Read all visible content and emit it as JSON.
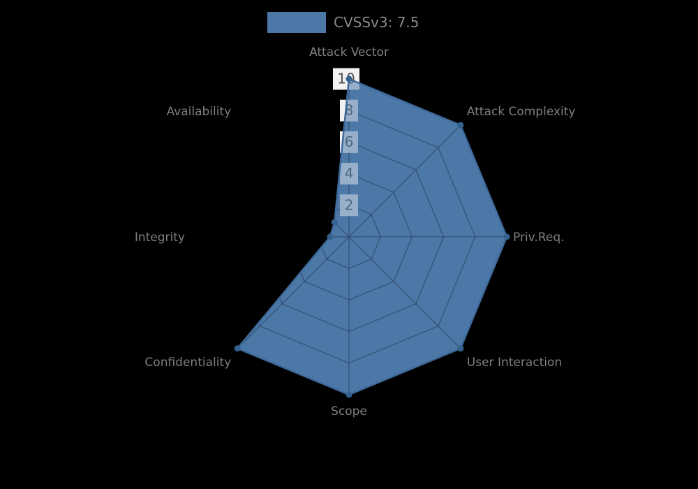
{
  "legend": {
    "label": "CVSSv3: 7.5",
    "swatch_color": "#4c78a8"
  },
  "chart_data": {
    "type": "radar",
    "categories": [
      "Attack Vector",
      "Attack Complexity",
      "Priv.Req.",
      "User Interaction",
      "Scope",
      "Confidentiality",
      "Integrity",
      "Availability"
    ],
    "series": [
      {
        "name": "CVSSv3: 7.5",
        "values": [
          10,
          10,
          10,
          10,
          10,
          10,
          1.2,
          1.3
        ]
      }
    ],
    "radial_ticks": [
      2,
      4,
      6,
      8,
      10
    ],
    "rmax": 10,
    "start_axis": "top",
    "direction": "clockwise",
    "grid": "on",
    "legend_position": "top-center",
    "colors": {
      "series_fill": "#4c78a8",
      "series_line": "#3e699b",
      "series_marker": "#35618f",
      "grid_line": "rgba(0,0,0,0.6)",
      "tick_box_bg": "#f2f2f2",
      "tick_text": "#4d4d4d",
      "axis_label_text": "#7f7f7f",
      "background": "#000000"
    }
  }
}
